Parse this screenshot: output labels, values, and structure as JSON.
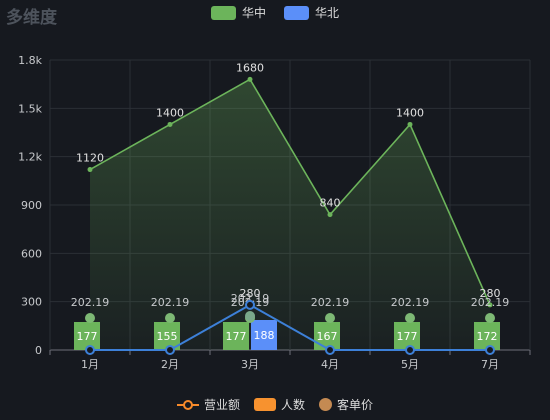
{
  "title": "多维度",
  "legend_top": [
    {
      "label": "华中",
      "color": "#6cb45b"
    },
    {
      "label": "华北",
      "color": "#5b8ff9"
    }
  ],
  "legend_bottom": [
    {
      "label": "营业额",
      "color": "#f78a2a",
      "icon": "line-circle-icon"
    },
    {
      "label": "人数",
      "color": "#f7922f",
      "icon": "rect-icon"
    },
    {
      "label": "客单价",
      "color": "#c48a52",
      "icon": "circle-icon"
    }
  ],
  "chart_data": {
    "type": "bar",
    "categories": [
      "1月",
      "2月",
      "3月",
      "4月",
      "5月",
      "7月"
    ],
    "ylim": [
      0,
      1800
    ],
    "y_ticks": [
      0,
      300,
      600,
      900,
      1200,
      1500,
      1800
    ],
    "y_tick_labels": [
      "0",
      "300",
      "600",
      "900",
      "1.2k",
      "1.5k",
      "1.8k"
    ],
    "grid": true,
    "series": [
      {
        "name": "华中",
        "kind": "area-line",
        "color": "#6cb45b",
        "values": [
          1120,
          1400,
          1680,
          840,
          1400,
          280
        ]
      },
      {
        "name": "华中",
        "kind": "bar",
        "color": "#6cb45b",
        "values": [
          177,
          155,
          177,
          167,
          177,
          172
        ]
      },
      {
        "name": "华北",
        "kind": "bar",
        "color": "#5b8ff9",
        "values": [
          null,
          null,
          188,
          null,
          null,
          null
        ]
      },
      {
        "name": "华北",
        "kind": "line",
        "color": "#3d80d8",
        "values": [
          0,
          0,
          280,
          0,
          0,
          0
        ]
      },
      {
        "name": "华中",
        "kind": "scatter",
        "color": "#7db874",
        "values": [
          202.19,
          202.19,
          202.19,
          202.19,
          202.19,
          202.19
        ]
      },
      {
        "name": "华北",
        "kind": "scatter",
        "color": "#7aa88a",
        "values": [
          null,
          null,
          202.19,
          null,
          null,
          null
        ]
      }
    ]
  }
}
